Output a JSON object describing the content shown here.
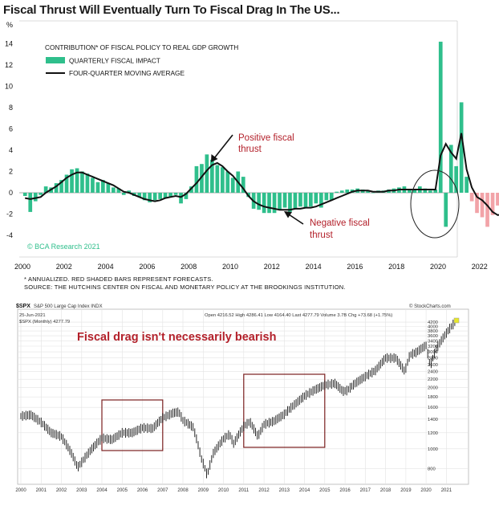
{
  "title": "Fiscal Thrust Will Eventually Turn To Fiscal Drag In The US...",
  "footnote1": "* ANNUALIZED. RED SHADED BARS REPRESENT FORECASTS.",
  "footnote2": "SOURCE: THE HUTCHINS CENTER ON FISCAL AND MONETARY POLICY AT THE BROOKINGS INSTITUTION.",
  "colors": {
    "bar": "#2fbf8c",
    "forecast": "#f2a3a8",
    "line": "#111111",
    "annot": "#b3202a",
    "spx": "#111111",
    "box": "#7a1f1f"
  },
  "chart_data": [
    {
      "type": "bar",
      "title": "CONTRIBUTION* OF FISCAL POLICY TO REAL GDP GROWTH",
      "ylabel": "%",
      "ylim": [
        -5,
        15
      ],
      "yticks": [
        "14",
        "12",
        "10",
        "8",
        "6",
        "4",
        "2",
        "0",
        "-2",
        "-4"
      ],
      "xticks": [
        "2000",
        "2002",
        "2004",
        "2006",
        "2008",
        "2010",
        "2012",
        "2014",
        "2016",
        "2018",
        "2020",
        "2022"
      ],
      "legend": [
        "QUARTERLY FISCAL IMPACT",
        "FOUR-QUARTER MOVING AVERAGE"
      ],
      "watermark": "© BCA Research 2021",
      "start_year": 2000,
      "forecast_from_index": 86,
      "bars": [
        -0.3,
        -1.8,
        -0.8,
        -0.2,
        0.6,
        0.5,
        0.9,
        1.2,
        1.7,
        2.2,
        2.3,
        2.0,
        1.8,
        1.4,
        1.0,
        1.2,
        0.9,
        0.5,
        0.4,
        -0.2,
        0.2,
        -0.3,
        -0.4,
        -0.7,
        -0.9,
        -0.7,
        -0.6,
        -0.5,
        -0.4,
        -0.2,
        -1.0,
        -0.6,
        0.6,
        2.5,
        2.7,
        3.6,
        3.1,
        2.6,
        2.4,
        2.0,
        1.4,
        2.0,
        1.5,
        -0.4,
        -1.5,
        -1.6,
        -1.9,
        -1.9,
        -1.9,
        -1.6,
        -1.4,
        -1.8,
        -1.5,
        -1.3,
        -1.4,
        -1.3,
        -1.0,
        -1.4,
        -0.7,
        -0.7,
        0.1,
        0.2,
        0.3,
        0.3,
        0.4,
        0.3,
        0.2,
        0.0,
        0.2,
        0.2,
        0.3,
        0.4,
        0.5,
        0.6,
        0.3,
        0.3,
        0.6,
        0.4,
        0.2,
        0.3,
        14.2,
        -3.2,
        4.5,
        2.5,
        8.5,
        1.5,
        -0.8,
        -1.9,
        -2.3,
        -3.2,
        -2.1,
        -1.2,
        -1.8
      ],
      "moving_average": [
        -0.5,
        -0.6,
        -0.5,
        -0.4,
        0.0,
        0.3,
        0.6,
        1.0,
        1.4,
        1.7,
        1.9,
        1.9,
        1.7,
        1.5,
        1.3,
        1.1,
        0.9,
        0.7,
        0.4,
        0.1,
        0.0,
        -0.2,
        -0.4,
        -0.6,
        -0.7,
        -0.8,
        -0.7,
        -0.5,
        -0.4,
        -0.3,
        -0.4,
        -0.1,
        0.4,
        0.9,
        1.5,
        2.1,
        2.6,
        2.8,
        2.5,
        2.0,
        1.6,
        1.0,
        0.4,
        -0.3,
        -0.8,
        -1.1,
        -1.3,
        -1.4,
        -1.5,
        -1.6,
        -1.6,
        -1.6,
        -1.5,
        -1.5,
        -1.4,
        -1.4,
        -1.3,
        -1.1,
        -0.9,
        -0.7,
        -0.5,
        -0.3,
        -0.1,
        0.1,
        0.2,
        0.2,
        0.2,
        0.1,
        0.1,
        0.1,
        0.2,
        0.2,
        0.3,
        0.3,
        0.3,
        0.3,
        0.3,
        0.3,
        0.3,
        0.3,
        3.5,
        4.6,
        3.8,
        3.2,
        5.6,
        2.2,
        0.5,
        -0.4,
        -0.7,
        -1.2,
        -1.8,
        -2.1,
        -2.0
      ],
      "annotations": [
        "Positive fiscal thrust",
        "Negative fiscal thrust"
      ]
    },
    {
      "type": "line",
      "title": "Fiscal drag isn't necessarily bearish",
      "symbol": "$SPX",
      "header_name": "S&P 500 Large Cap Index INDX",
      "header_date": "25-Jun-2021",
      "header_series": "$SPX (Monthly) 4277.79",
      "header_quote": "Open 4216.52  High 4286.41  Low 4164.40  Last 4277.79  Volume 3.7B  Chg +73.68 (+1.75%)",
      "provider": "© StockCharts.com",
      "scale": "log",
      "xticks": [
        "2000",
        "2001",
        "2002",
        "2003",
        "2004",
        "2005",
        "2006",
        "2007",
        "2008",
        "2009",
        "2010",
        "2011",
        "2012",
        "2013",
        "2014",
        "2015",
        "2016",
        "2017",
        "2018",
        "2019",
        "2020",
        "2021"
      ],
      "yticks": [
        "4200",
        "4000",
        "3800",
        "3600",
        "3400",
        "3200",
        "3000",
        "2800",
        "2600",
        "2400",
        "2200",
        "2000",
        "1800",
        "1600",
        "1400",
        "1200",
        "1000",
        "800"
      ],
      "x": [
        2000.0,
        2000.5,
        2001.0,
        2001.5,
        2002.0,
        2002.5,
        2002.8,
        2003.0,
        2003.5,
        2004.0,
        2004.5,
        2005.0,
        2005.5,
        2006.0,
        2006.5,
        2007.0,
        2007.5,
        2007.8,
        2008.0,
        2008.5,
        2008.9,
        2009.2,
        2009.5,
        2010.0,
        2010.3,
        2010.5,
        2011.0,
        2011.3,
        2011.7,
        2012.0,
        2012.5,
        2013.0,
        2013.5,
        2014.0,
        2014.5,
        2015.0,
        2015.5,
        2015.9,
        2016.1,
        2016.5,
        2017.0,
        2017.5,
        2018.0,
        2018.5,
        2018.95,
        2019.2,
        2019.5,
        2020.0,
        2020.2,
        2020.5,
        2020.9,
        2021.2,
        2021.5
      ],
      "values": [
        1450,
        1470,
        1350,
        1200,
        1150,
        950,
        810,
        860,
        1000,
        1130,
        1110,
        1200,
        1200,
        1270,
        1260,
        1420,
        1500,
        1520,
        1380,
        1280,
        900,
        740,
        950,
        1120,
        1180,
        1060,
        1290,
        1360,
        1150,
        1320,
        1370,
        1480,
        1650,
        1820,
        1950,
        2060,
        2100,
        1920,
        1940,
        2100,
        2270,
        2430,
        2800,
        2800,
        2400,
        2900,
        2980,
        3230,
        2550,
        3100,
        3600,
        3950,
        4280
      ],
      "highlight_periods": [
        [
          2004,
          2007
        ],
        [
          2011,
          2015
        ]
      ]
    }
  ]
}
